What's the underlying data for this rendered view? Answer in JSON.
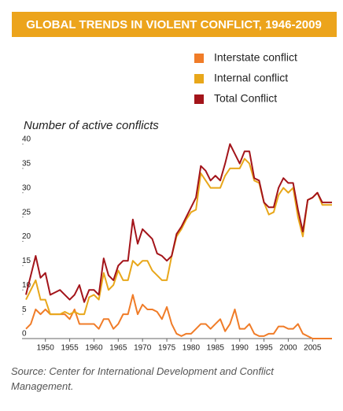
{
  "chart_data": {
    "type": "line",
    "title": "GLOBAL TRENDS IN VIOLENT CONFLICT, 1946-2009",
    "y_label": "Number of active conflicts",
    "source": "Source: Center for International Development and Conflict Management.",
    "x": [
      1946,
      1947,
      1948,
      1949,
      1950,
      1951,
      1952,
      1953,
      1954,
      1955,
      1956,
      1957,
      1958,
      1959,
      1960,
      1961,
      1962,
      1963,
      1964,
      1965,
      1966,
      1967,
      1968,
      1969,
      1970,
      1971,
      1972,
      1973,
      1974,
      1975,
      1976,
      1977,
      1978,
      1979,
      1980,
      1981,
      1982,
      1983,
      1984,
      1985,
      1986,
      1987,
      1988,
      1989,
      1990,
      1991,
      1992,
      1993,
      1994,
      1995,
      1996,
      1997,
      1998,
      1999,
      2000,
      2001,
      2002,
      2003,
      2004,
      2005,
      2006,
      2007,
      2008,
      2009
    ],
    "series": [
      {
        "name": "Interstate conflict",
        "color": "#f07c28",
        "values": [
          2,
          3,
          6,
          5,
          6,
          5,
          5,
          5,
          5,
          4,
          6,
          3,
          3,
          3,
          3,
          2,
          4,
          4,
          2,
          3,
          5,
          5,
          9,
          5,
          7,
          6,
          6,
          5.5,
          4,
          6.5,
          3,
          1,
          0.5,
          1,
          1,
          2,
          3,
          3,
          2,
          3,
          4,
          1.5,
          3,
          6,
          2,
          2,
          3,
          1,
          0.5,
          0.5,
          1,
          1,
          2.5,
          2.5,
          2,
          2,
          3,
          1,
          0.5,
          0,
          0,
          0,
          0,
          0
        ]
      },
      {
        "name": "Internal conflict",
        "color": "#e8a71a",
        "values": [
          8,
          10,
          12,
          8,
          8,
          5,
          5,
          5,
          5.5,
          5,
          5.5,
          5,
          5,
          8.5,
          9,
          8,
          13.5,
          10,
          11,
          14,
          12,
          12,
          16,
          15,
          16,
          16,
          14,
          13,
          12,
          12,
          17,
          21,
          22.5,
          24.5,
          26,
          26.5,
          34,
          32.5,
          31,
          31,
          31,
          33.5,
          35,
          35,
          35,
          37,
          36,
          32.5,
          32,
          28,
          25.5,
          26,
          29.5,
          31,
          30,
          31,
          25,
          21,
          28.5,
          29,
          30,
          27.5,
          27.5,
          27.5
        ]
      },
      {
        "name": "Total Conflict",
        "color": "#a3141a",
        "values": [
          9,
          13,
          17,
          12.5,
          13.5,
          9,
          9.5,
          10,
          9,
          8,
          9,
          11,
          7.5,
          10,
          10,
          9,
          16.5,
          13,
          12,
          15,
          16,
          16,
          24.5,
          19.5,
          22.5,
          21.5,
          20.5,
          17.5,
          17,
          16,
          17,
          21.5,
          23,
          25,
          27,
          29,
          35.5,
          34.5,
          32.5,
          33.5,
          32.5,
          36,
          40,
          38,
          36,
          38.5,
          38.5,
          33,
          32.5,
          28,
          27,
          27,
          31,
          33,
          32,
          32,
          26.5,
          22,
          28.5,
          29,
          30,
          28,
          28,
          28
        ]
      }
    ],
    "xlim": [
      1946,
      2009
    ],
    "xticks": [
      1950,
      1955,
      1960,
      1965,
      1970,
      1975,
      1980,
      1985,
      1990,
      1995,
      2000,
      2005
    ],
    "ylim": [
      0,
      40
    ],
    "yticks": [
      0,
      5,
      10,
      15,
      20,
      25,
      30,
      35,
      40
    ]
  }
}
